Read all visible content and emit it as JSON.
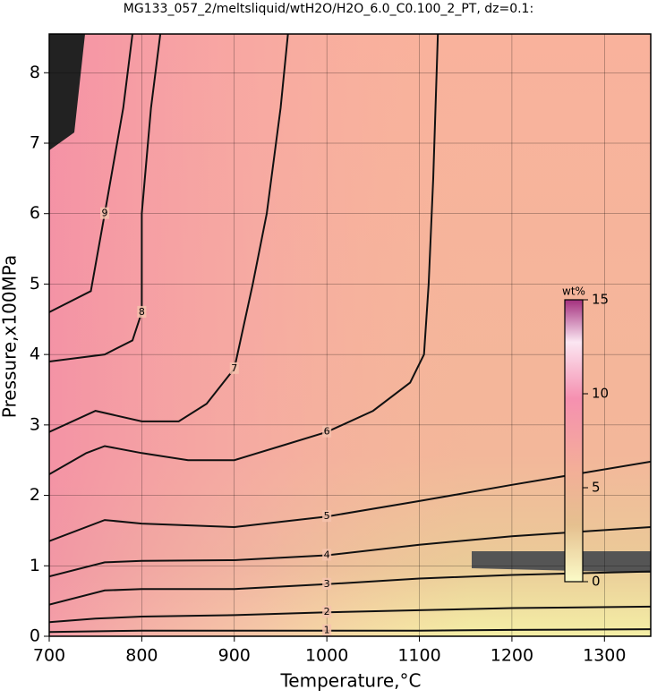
{
  "chart_data": {
    "type": "contour",
    "title": "MG133_057_2/meltsliquid/wtH2O/H2O_6.0_C0.100_2_PT, dz=0.1:",
    "xlabel": "Temperature,°C",
    "ylabel": "Pressure,x100MPa",
    "xlim": [
      700,
      1350
    ],
    "ylim": [
      0,
      8.55
    ],
    "xticks": [
      700,
      800,
      900,
      1000,
      1100,
      1200,
      1300
    ],
    "yticks": [
      0,
      1,
      2,
      3,
      4,
      5,
      6,
      7,
      8
    ],
    "grid": true,
    "contours": [
      {
        "level": 1,
        "x": [
          700,
          800,
          900,
          1000,
          1100,
          1200,
          1350
        ],
        "y": [
          0.06,
          0.08,
          0.08,
          0.08,
          0.08,
          0.09,
          0.1
        ]
      },
      {
        "level": 2,
        "x": [
          700,
          750,
          800,
          900,
          1000,
          1100,
          1200,
          1350
        ],
        "y": [
          0.2,
          0.25,
          0.28,
          0.3,
          0.34,
          0.37,
          0.4,
          0.42
        ]
      },
      {
        "level": 3,
        "x": [
          700,
          760,
          800,
          900,
          1000,
          1100,
          1200,
          1350
        ],
        "y": [
          0.45,
          0.65,
          0.67,
          0.67,
          0.74,
          0.82,
          0.87,
          0.92
        ]
      },
      {
        "level": 4,
        "x": [
          700,
          760,
          800,
          900,
          1000,
          1100,
          1200,
          1350
        ],
        "y": [
          0.85,
          1.05,
          1.07,
          1.08,
          1.15,
          1.3,
          1.42,
          1.55
        ]
      },
      {
        "level": 5,
        "x": [
          700,
          760,
          800,
          900,
          1000,
          1100,
          1200,
          1350
        ],
        "y": [
          1.35,
          1.65,
          1.6,
          1.55,
          1.7,
          1.92,
          2.15,
          2.48
        ]
      },
      {
        "level": 6,
        "x": [
          700,
          740,
          760,
          800,
          850,
          900,
          950,
          1000,
          1050,
          1090,
          1105,
          1110,
          1115,
          1120
        ],
        "y": [
          2.3,
          2.6,
          2.7,
          2.6,
          2.5,
          2.5,
          2.7,
          2.9,
          3.2,
          3.6,
          4.0,
          5.0,
          6.5,
          8.55
        ]
      },
      {
        "level": 7,
        "x": [
          700,
          750,
          800,
          840,
          870,
          900,
          920,
          935,
          950,
          958
        ],
        "y": [
          2.9,
          3.2,
          3.05,
          3.05,
          3.3,
          3.8,
          5.0,
          6.0,
          7.5,
          8.55
        ]
      },
      {
        "level": 8,
        "x": [
          700,
          760,
          790,
          800,
          800,
          810,
          820
        ],
        "y": [
          3.9,
          4.0,
          4.2,
          4.6,
          6.0,
          7.5,
          8.55
        ]
      },
      {
        "level": 9,
        "x": [
          700,
          745,
          760,
          780,
          790
        ],
        "y": [
          4.6,
          4.9,
          6.0,
          7.5,
          8.55
        ]
      }
    ],
    "colorbar": {
      "label": "wt%",
      "lim": [
        0,
        15
      ],
      "ticks": [
        0,
        5,
        10,
        15
      ]
    }
  }
}
